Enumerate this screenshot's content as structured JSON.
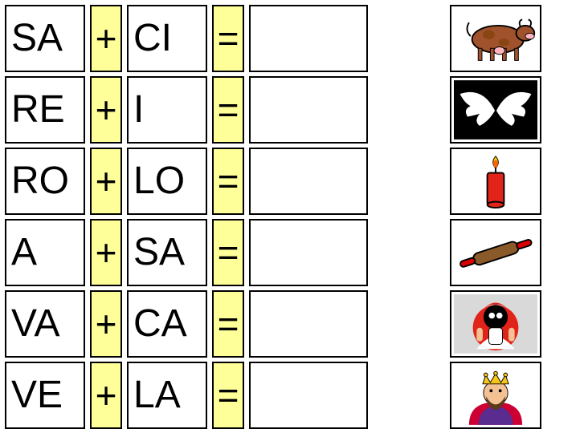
{
  "rows": [
    {
      "s1": "SA",
      "op": "+",
      "s2": "CI",
      "eq": "=",
      "answer": "",
      "image": "cow"
    },
    {
      "s1": "RE",
      "op": "+",
      "s2": "I",
      "eq": "=",
      "answer": "",
      "image": "wings"
    },
    {
      "s1": "RO",
      "op": "+",
      "s2": "LO",
      "eq": "=",
      "answer": "",
      "image": "candle"
    },
    {
      "s1": "A",
      "op": "+",
      "s2": "SA",
      "eq": "=",
      "answer": "",
      "image": "rolling-pin"
    },
    {
      "s1": "VA",
      "op": "+",
      "s2": "CA",
      "eq": "=",
      "answer": "",
      "image": "mascot"
    },
    {
      "s1": "VE",
      "op": "+",
      "s2": "LA",
      "eq": "=",
      "answer": "",
      "image": "king"
    }
  ],
  "colors": {
    "highlight": "#ffff99",
    "border": "#000000",
    "background": "#ffffff"
  },
  "typography": {
    "syllable_fontsize": 48,
    "operator_fontsize": 46,
    "font_family": "Arial"
  },
  "icons": {
    "cow": {
      "body": "#a0522d",
      "spots": "#8b4513",
      "outline": "#000000",
      "udder": "#ffb6c1",
      "bg": "#ffffff"
    },
    "wings": {
      "wing": "#ffffff",
      "bg": "#000000"
    },
    "candle": {
      "body": "#e2231a",
      "flame": "#ffcc00",
      "flame_inner": "#ff6600",
      "wick": "#000000",
      "bg": "#ffffff"
    },
    "rolling-pin": {
      "barrel": "#8b5a2b",
      "handle": "#d90000",
      "outline": "#000000",
      "bg": "#ffffff"
    },
    "mascot": {
      "bg": "#d9d9d9",
      "accent": "#e2231a",
      "body": "#000000",
      "skin": "#f2c294",
      "white": "#ffffff"
    },
    "king": {
      "robe": "#cc0033",
      "robe2": "#5b2c8f",
      "skin": "#f2c294",
      "beard": "#5b3a1a",
      "crown": "#f5c518",
      "bg": "#ffffff"
    }
  }
}
